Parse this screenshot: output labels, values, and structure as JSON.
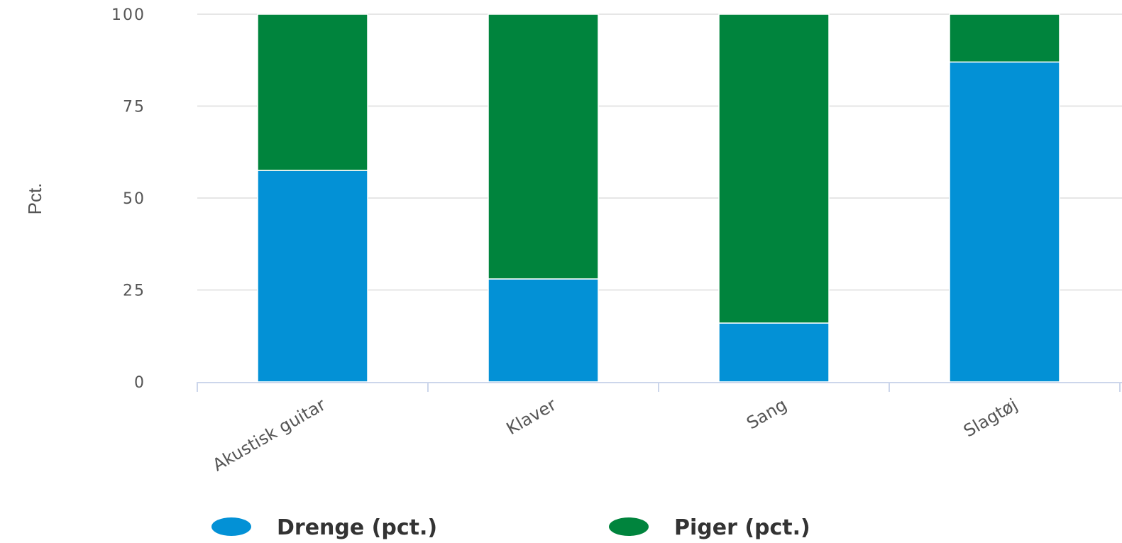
{
  "chart_data": {
    "type": "bar",
    "stacked": true,
    "categories": [
      "Akustisk guitar",
      "Klaver",
      "Sang",
      "Slagtøj"
    ],
    "series": [
      {
        "name": "Drenge (pct.)",
        "values": [
          57.5,
          28,
          16,
          87
        ],
        "color": "#0391d6"
      },
      {
        "name": "Piger (pct.)",
        "values": [
          42.5,
          72,
          84,
          13
        ],
        "color": "#00843d"
      }
    ],
    "ylabel": "Pct.",
    "ylim": [
      0,
      100
    ],
    "yticks": [
      "0",
      "25",
      "50",
      "75",
      "100"
    ],
    "grid": true,
    "legend_position": "bottom"
  }
}
